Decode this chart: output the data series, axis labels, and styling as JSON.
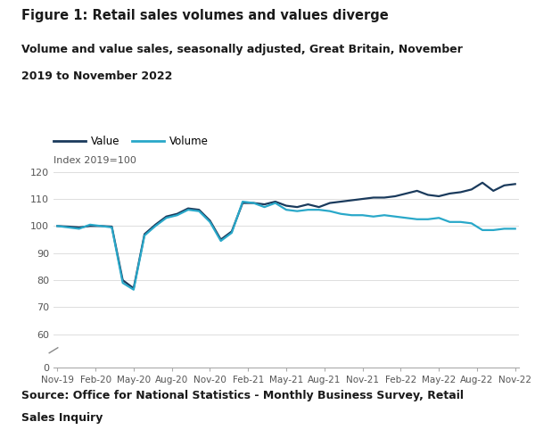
{
  "title": "Figure 1: Retail sales volumes and values diverge",
  "subtitle_line1": "Volume and value sales, seasonally adjusted, Great Britain, November",
  "subtitle_line2": "2019 to November 2022",
  "ylabel": "Index 2019=100",
  "source_line1": "Source: Office for National Statistics - Monthly Business Survey, Retail",
  "source_line2": "Sales Inquiry",
  "value_color": "#1a3a5c",
  "volume_color": "#29a8c9",
  "x_labels": [
    "Nov-19",
    "Feb-20",
    "May-20",
    "Aug-20",
    "Nov-20",
    "Feb-21",
    "May-21",
    "Aug-21",
    "Nov-21",
    "Feb-22",
    "May-22",
    "Aug-22",
    "Nov-22"
  ],
  "value_data": [
    100.0,
    99.8,
    99.5,
    100.0,
    100.0,
    99.8,
    80.0,
    77.0,
    97.0,
    100.5,
    103.5,
    104.5,
    106.5,
    106.0,
    102.0,
    95.0,
    98.0,
    108.5,
    108.5,
    108.0,
    109.0,
    107.5,
    107.0,
    108.0,
    107.0,
    108.5,
    109.0,
    109.5,
    110.0,
    110.5,
    110.5,
    111.0,
    112.0,
    113.0,
    111.5,
    111.0,
    112.0,
    112.5,
    113.5,
    116.0,
    113.0,
    115.0,
    115.5
  ],
  "volume_data": [
    100.0,
    99.5,
    99.0,
    100.5,
    100.0,
    99.5,
    79.0,
    76.5,
    96.5,
    100.0,
    103.0,
    104.0,
    106.0,
    105.5,
    101.5,
    94.5,
    97.5,
    109.0,
    108.5,
    107.0,
    108.5,
    106.0,
    105.5,
    106.0,
    106.0,
    105.5,
    104.5,
    104.0,
    104.0,
    103.5,
    104.0,
    103.5,
    103.0,
    102.5,
    102.5,
    103.0,
    101.5,
    101.5,
    101.0,
    98.5,
    98.5,
    99.0,
    99.0
  ],
  "n_points": 43,
  "x_tick_positions": [
    0,
    3,
    6,
    9,
    12,
    15,
    18,
    21,
    24,
    27,
    30,
    33,
    36,
    39,
    42
  ],
  "x_tick_labels_show": [
    0,
    3,
    6,
    9,
    12,
    15,
    18,
    21,
    24,
    27,
    30,
    33,
    36
  ],
  "bg_color": "#ffffff",
  "grid_color": "#dddddd",
  "upper_ylim": [
    55,
    122
  ],
  "lower_ylim": [
    0,
    5
  ],
  "upper_yticks": [
    60,
    70,
    80,
    90,
    100,
    110,
    120
  ],
  "lower_yticks": [
    0
  ]
}
